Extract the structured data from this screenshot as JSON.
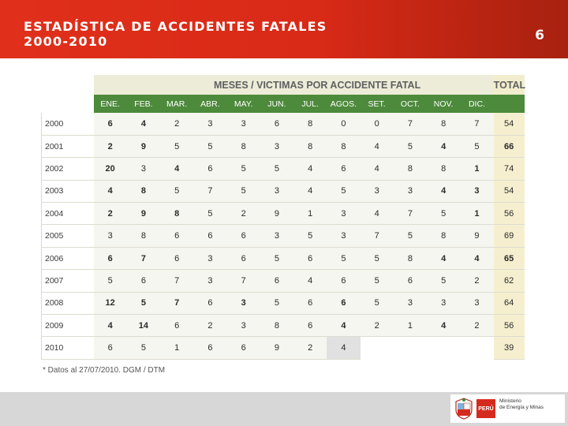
{
  "slide": {
    "title_line1": "ESTADÍSTICA DE ACCIDENTES FATALES",
    "title_line2": "2000-2010",
    "number": "6"
  },
  "table": {
    "caption": "MESES / VICTIMAS POR ACCIDENTE FATAL",
    "total_header": "TOTAL",
    "months": [
      "ENE.",
      "FEB.",
      "MAR.",
      "ABR.",
      "MAY.",
      "JUN.",
      "JUL.",
      "AGOS.",
      "SET.",
      "OCT.",
      "NOV.",
      "DIC."
    ],
    "rows": [
      {
        "year": "2000",
        "values": [
          "6",
          "4",
          "2",
          "3",
          "3",
          "6",
          "8",
          "0",
          "0",
          "7",
          "8",
          "7"
        ],
        "total": "54"
      },
      {
        "year": "2001",
        "values": [
          "2",
          "9",
          "5",
          "5",
          "8",
          "3",
          "8",
          "8",
          "4",
          "5",
          "4",
          "5"
        ],
        "total": "66"
      },
      {
        "year": "2002",
        "values": [
          "20",
          "3",
          "4",
          "6",
          "5",
          "5",
          "4",
          "6",
          "4",
          "8",
          "8",
          "1"
        ],
        "total": "74"
      },
      {
        "year": "2003",
        "values": [
          "4",
          "8",
          "5",
          "7",
          "5",
          "3",
          "4",
          "5",
          "3",
          "3",
          "4",
          "3"
        ],
        "total": "54"
      },
      {
        "year": "2004",
        "values": [
          "2",
          "9",
          "8",
          "5",
          "2",
          "9",
          "1",
          "3",
          "4",
          "7",
          "5",
          "1"
        ],
        "total": "56"
      },
      {
        "year": "2005",
        "values": [
          "3",
          "8",
          "6",
          "6",
          "6",
          "3",
          "5",
          "3",
          "7",
          "5",
          "8",
          "9"
        ],
        "total": "69"
      },
      {
        "year": "2006",
        "values": [
          "6",
          "7",
          "6",
          "3",
          "6",
          "5",
          "6",
          "5",
          "5",
          "8",
          "4",
          "4"
        ],
        "total": "65"
      },
      {
        "year": "2007",
        "values": [
          "5",
          "6",
          "7",
          "3",
          "7",
          "6",
          "4",
          "6",
          "5",
          "6",
          "5",
          "2"
        ],
        "total": "62"
      },
      {
        "year": "2008",
        "values": [
          "12",
          "5",
          "7",
          "6",
          "3",
          "5",
          "6",
          "6",
          "5",
          "3",
          "3",
          "3"
        ],
        "total": "64"
      },
      {
        "year": "2009",
        "values": [
          "4",
          "14",
          "6",
          "2",
          "3",
          "8",
          "6",
          "4",
          "2",
          "1",
          "4",
          "2"
        ],
        "total": "56"
      },
      {
        "year": "2010",
        "values": [
          "6",
          "5",
          "1",
          "6",
          "6",
          "9",
          "2",
          "4",
          "",
          "",
          "",
          ""
        ],
        "total": "39"
      }
    ]
  },
  "footnote": "* Datos al 27/07/2010. DGM / DTM",
  "footer": {
    "peru_label": "PERÚ",
    "ministry_line1": "Ministerio",
    "ministry_line2": "de Energía y Minas"
  },
  "colors": {
    "header_red": "#d92a17",
    "table_green": "#4d8a3c",
    "total_yellow": "#f6efcf",
    "footer_gray": "#d7d7d7"
  }
}
